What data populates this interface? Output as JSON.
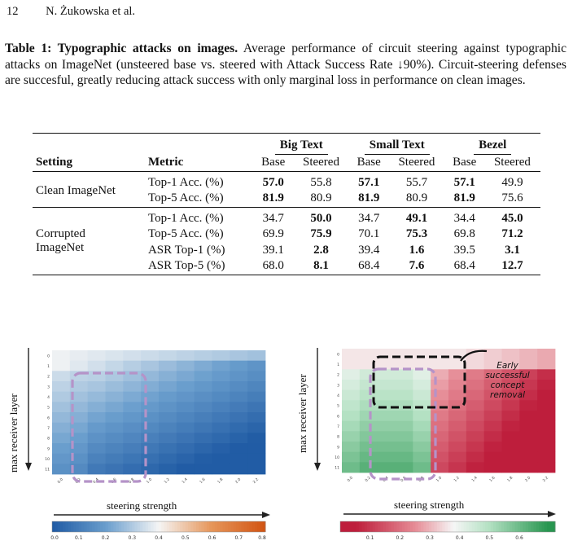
{
  "header": {
    "page_number": "12",
    "authors": "N. Żukowska et al."
  },
  "caption": {
    "label": "Table 1: Typographic attacks on images.",
    "text": " Average performance of circuit steering against typographic attacks on ImageNet (unsteered base vs. steered with Attack Success Rate ↓90%). Circuit-steering defenses are succesful, greatly reducing attack success with only marginal loss in performance on clean images."
  },
  "table": {
    "groups": [
      "Big Text",
      "Small Text",
      "Bezel"
    ],
    "col_setting": "Setting",
    "col_metric": "Metric",
    "sub": [
      "Base",
      "Steered",
      "Base",
      "Steered",
      "Base",
      "Steered"
    ],
    "clean_label": "Clean ImageNet",
    "corrupted_label_1": "Corrupted",
    "corrupted_label_2": "ImageNet",
    "rows": [
      {
        "metric": "Top-1 Acc. (%)",
        "vals": [
          "57.0",
          "55.8",
          "57.1",
          "55.7",
          "57.1",
          "49.9"
        ]
      },
      {
        "metric": "Top-5 Acc. (%)",
        "vals": [
          "81.9",
          "80.9",
          "81.9",
          "80.9",
          "81.9",
          "75.6"
        ]
      },
      {
        "metric": "Top-1 Acc. (%)",
        "vals": [
          "34.7",
          "50.0",
          "34.7",
          "49.1",
          "34.4",
          "45.0"
        ]
      },
      {
        "metric": "Top-5 Acc. (%)",
        "vals": [
          "69.9",
          "75.9",
          "70.1",
          "75.3",
          "69.8",
          "71.2"
        ]
      },
      {
        "metric": "ASR Top-1 (%)",
        "vals": [
          "39.1",
          "2.8",
          "39.4",
          "1.6",
          "39.5",
          "3.1"
        ]
      },
      {
        "metric": "ASR Top-5 (%)",
        "vals": [
          "68.0",
          "8.1",
          "68.4",
          "7.6",
          "68.4",
          "12.7"
        ]
      }
    ]
  },
  "figure": {
    "left": {
      "ylabel": "max receiver layer",
      "xlabel": "steering strength",
      "colorbar_ticks": [
        "0.0",
        "0.1",
        "0.2",
        "0.3",
        "0.4",
        "0.5",
        "0.6",
        "0.7",
        "0.8"
      ]
    },
    "right": {
      "ylabel": "max receiver layer",
      "xlabel": "steering strength",
      "colorbar_ticks": [
        "0.1",
        "0.2",
        "0.3",
        "0.4",
        "0.5",
        "0.6"
      ],
      "annotation": [
        "Early",
        "successful",
        "concept",
        "removal"
      ]
    },
    "y_ticks": [
      "0",
      "1",
      "2",
      "3",
      "4",
      "5",
      "6",
      "7",
      "8",
      "9",
      "10",
      "11"
    ],
    "x_ticks": [
      "0.0",
      "0.2",
      "0.4",
      "0.6",
      "0.8",
      "1.0",
      "1.2",
      "1.4",
      "1.6",
      "1.8",
      "2.0",
      "2.2"
    ]
  }
}
